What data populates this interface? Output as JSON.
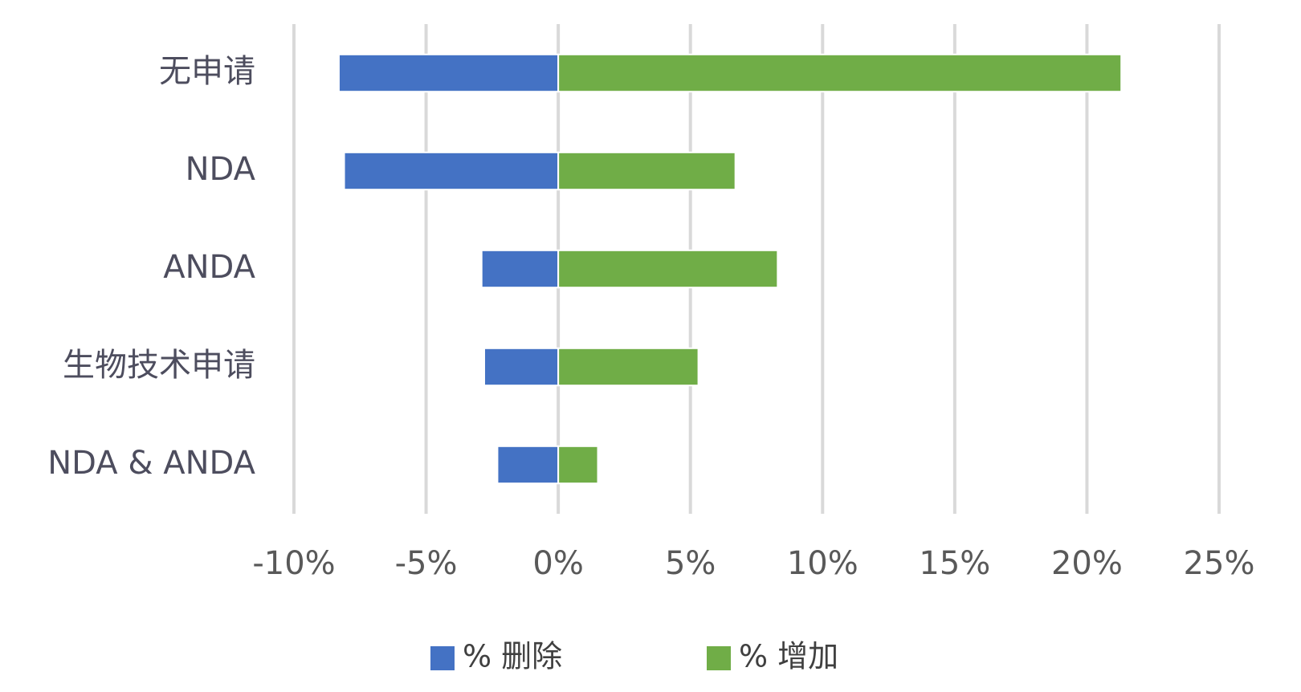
{
  "chart_data": {
    "type": "bar",
    "orientation": "horizontal",
    "categories": [
      "无申请",
      "NDA",
      "ANDA",
      "生物技术申请",
      "NDA & ANDA"
    ],
    "series": [
      {
        "name": "% 删除",
        "color": "#4472c4",
        "values": [
          -8.3,
          -8.1,
          -2.9,
          -2.8,
          -2.3
        ]
      },
      {
        "name": "% 增加",
        "color": "#70ad47",
        "values": [
          21.3,
          6.7,
          8.3,
          5.3,
          1.5
        ]
      }
    ],
    "xlim": [
      -10,
      25
    ],
    "xticks": [
      {
        "value": -10,
        "label": "-10%"
      },
      {
        "value": -5,
        "label": "-5%"
      },
      {
        "value": 0,
        "label": "0%"
      },
      {
        "value": 5,
        "label": "5%"
      },
      {
        "value": 10,
        "label": "10%"
      },
      {
        "value": 15,
        "label": "15%"
      },
      {
        "value": 20,
        "label": "20%"
      },
      {
        "value": 25,
        "label": "25%"
      }
    ],
    "grid": true,
    "legend": "bottom"
  }
}
